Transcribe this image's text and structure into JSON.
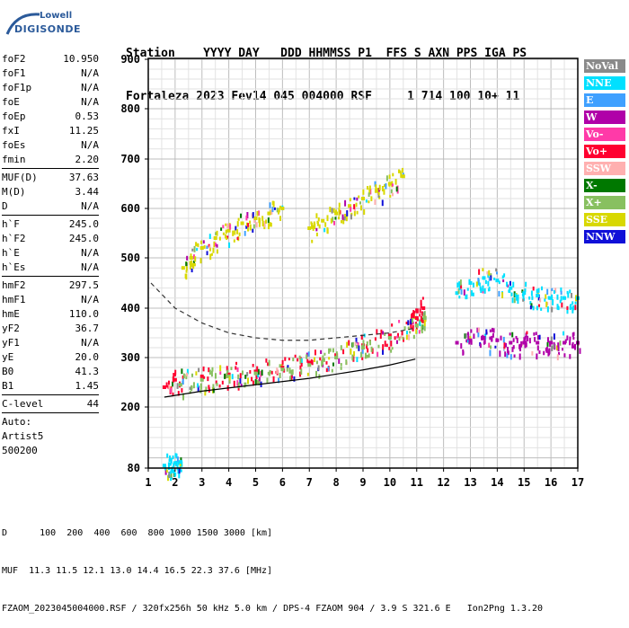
{
  "logo": {
    "line1": "Lowell",
    "line2": "DIGISONDE"
  },
  "header": {
    "row1": "Station    YYYY DAY   DDD HHMMSS P1  FFS S AXN PPS IGA PS",
    "row2": "Fortaleza 2023 Fev14 045 004000 RSF     1 714 100 10+ 11"
  },
  "params": [
    {
      "k": "foF2",
      "v": "10.950"
    },
    {
      "k": "foF1",
      "v": "N/A"
    },
    {
      "k": "foF1p",
      "v": "N/A"
    },
    {
      "k": "foE",
      "v": "N/A"
    },
    {
      "k": "foEp",
      "v": "0.53"
    },
    {
      "k": "fxI",
      "v": "11.25"
    },
    {
      "k": "foEs",
      "v": "N/A"
    },
    {
      "k": "fmin",
      "v": "2.20"
    },
    {
      "sep": true
    },
    {
      "k": "MUF(D)",
      "v": "37.63"
    },
    {
      "k": "M(D)",
      "v": "3.44"
    },
    {
      "k": "D",
      "v": "N/A"
    },
    {
      "sep": true
    },
    {
      "k": "h`F",
      "v": "245.0"
    },
    {
      "k": "h`F2",
      "v": "245.0"
    },
    {
      "k": "h`E",
      "v": "N/A"
    },
    {
      "k": "h`Es",
      "v": "N/A"
    },
    {
      "sep": true
    },
    {
      "k": "hmF2",
      "v": "297.5"
    },
    {
      "k": "hmF1",
      "v": "N/A"
    },
    {
      "k": "hmE",
      "v": "110.0"
    },
    {
      "k": "yF2",
      "v": "36.7"
    },
    {
      "k": "yF1",
      "v": "N/A"
    },
    {
      "k": "yE",
      "v": "20.0"
    },
    {
      "k": "B0",
      "v": "41.3"
    },
    {
      "k": "B1",
      "v": "1.45"
    },
    {
      "sep": true
    },
    {
      "k": "C-level",
      "v": "44"
    },
    {
      "sep": true
    },
    {
      "t": "Auto:"
    },
    {
      "t": "Artist5"
    },
    {
      "t": "500200"
    }
  ],
  "legend": [
    {
      "label": "NoVal",
      "color": "#8a8a8a"
    },
    {
      "label": "NNE",
      "color": "#00e0ff"
    },
    {
      "label": "E",
      "color": "#3fa0ff"
    },
    {
      "label": "W",
      "color": "#b000a8"
    },
    {
      "label": "Vo-",
      "color": "#ff3aa8"
    },
    {
      "label": "Vo+",
      "color": "#ff0030"
    },
    {
      "label": "SSW",
      "color": "#ffb0b0"
    },
    {
      "label": "X-",
      "color": "#007800"
    },
    {
      "label": "X+",
      "color": "#88c060"
    },
    {
      "label": "SSE",
      "color": "#d8d800"
    },
    {
      "label": "NNW",
      "color": "#1010d8"
    }
  ],
  "footer": {
    "line1": "D      100  200  400  600  800 1000 1500 3000 [km]",
    "line2": "MUF  11.3 11.5 12.1 13.0 14.4 16.5 22.3 37.6 [MHz]",
    "line3": "FZAOM_2023045004000.RSF / 320fx256h 50 kHz 5.0 km / DPS-4 FZAOM 904 / 3.9 S 321.6 E   Ion2Png 1.3.20"
  },
  "chart_data": {
    "type": "scatter",
    "x_ticks": [
      "1",
      "2",
      "3",
      "4",
      "5",
      "6",
      "7",
      "8",
      "9",
      "10",
      "11",
      "12",
      "13",
      "14",
      "15",
      "16",
      "17"
    ],
    "y_ticks": [
      "80",
      "200",
      "300",
      "400",
      "500",
      "600",
      "700",
      "800",
      "900"
    ],
    "xlim": [
      1,
      17
    ],
    "ylim": [
      80,
      900
    ],
    "grid": true,
    "traces": [
      {
        "series": "Vo+",
        "x": [
          1.6,
          2.0,
          3.0,
          4.0,
          5.0,
          6.0,
          7.0,
          8.0,
          9.0,
          10.0,
          10.8,
          11.0,
          11.25
        ],
        "y": [
          240,
          255,
          262,
          266,
          272,
          280,
          290,
          305,
          325,
          345,
          370,
          380,
          400
        ]
      },
      {
        "series": "X+",
        "x": [
          2.2,
          3.0,
          4.0,
          5.0,
          6.0,
          7.0,
          8.0,
          9.0,
          10.0,
          11.0,
          11.3
        ],
        "y": [
          245,
          255,
          262,
          268,
          276,
          285,
          300,
          320,
          340,
          365,
          380
        ]
      },
      {
        "series": "NNE",
        "x": [
          1.6,
          1.8,
          2.0,
          2.2
        ],
        "y": [
          85,
          88,
          90,
          92
        ]
      },
      {
        "series": "SSE",
        "x": [
          2.3,
          2.6,
          3.0,
          3.5,
          4.0,
          4.5,
          5.0,
          5.5,
          6.0
        ],
        "y": [
          480,
          500,
          520,
          540,
          555,
          570,
          580,
          590,
          600
        ]
      },
      {
        "series": "SSE",
        "x": [
          7.0,
          7.5,
          8.0,
          8.5,
          9.0,
          9.5,
          10.0,
          10.5
        ],
        "y": [
          560,
          575,
          590,
          605,
          620,
          635,
          650,
          665
        ]
      },
      {
        "series": "NNE",
        "x": [
          12.5,
          13.0,
          13.5,
          14.0,
          14.5,
          15.0,
          15.5,
          16.0,
          16.5,
          17.0
        ],
        "y": [
          430,
          450,
          460,
          455,
          440,
          430,
          425,
          420,
          420,
          420
        ]
      },
      {
        "series": "W",
        "x": [
          12.5,
          13.0,
          13.5,
          14.0,
          14.5,
          15.0,
          15.5,
          16.0,
          16.5,
          17.0
        ],
        "y": [
          330,
          335,
          340,
          335,
          330,
          330,
          330,
          330,
          330,
          330
        ]
      }
    ],
    "curves": [
      {
        "name": "profile",
        "x": [
          1.6,
          3,
          5,
          7,
          9,
          10,
          10.95
        ],
        "y": [
          220,
          232,
          245,
          258,
          275,
          285,
          297
        ]
      },
      {
        "name": "muf-curve",
        "x": [
          1.1,
          2,
          3,
          4,
          5,
          6,
          7,
          8,
          9,
          10,
          11
        ],
        "y": [
          450,
          400,
          370,
          350,
          340,
          335,
          335,
          340,
          345,
          350,
          360
        ]
      }
    ]
  }
}
